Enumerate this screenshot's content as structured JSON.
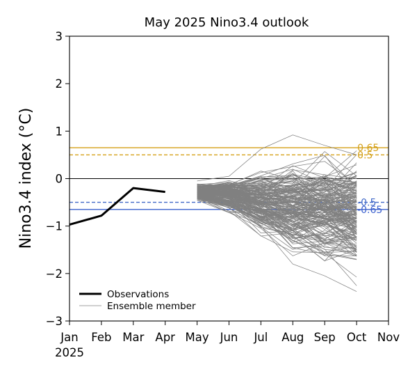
{
  "chart_data": {
    "type": "line",
    "title": "May 2025 Nino3.4 outlook",
    "ylabel": "Nino3.4 index (°C)",
    "xlabel": "",
    "year_label": "2025",
    "ylim": [
      -3,
      3
    ],
    "xlim": [
      0,
      10
    ],
    "yticks": [
      -3,
      -2,
      -1,
      0,
      1,
      2,
      3
    ],
    "ytick_labels": [
      "−3",
      "−2",
      "−1",
      "0",
      "1",
      "2",
      "3"
    ],
    "xtick_labels": [
      "Jan",
      "Feb",
      "Mar",
      "Apr",
      "May",
      "Jun",
      "Jul",
      "Aug",
      "Sep",
      "Oct",
      "Nov"
    ],
    "observations": {
      "name": "Observations",
      "x": [
        0,
        1,
        2,
        3
      ],
      "y": [
        -0.97,
        -0.78,
        -0.2,
        -0.28
      ],
      "color": "#000000"
    },
    "ensemble": {
      "name": "Ensemble member",
      "color": "#808080",
      "start_x": 4,
      "months_x": [
        4,
        5,
        6,
        7,
        8,
        9
      ],
      "center": [
        -0.28,
        -0.36,
        -0.5,
        -0.6,
        -0.65,
        -0.7
      ],
      "spread": [
        0.12,
        0.25,
        0.48,
        0.62,
        0.75,
        0.85
      ],
      "extremes": [
        [
          -0.05,
          0.05,
          0.62,
          0.92,
          0.7,
          0.5
        ],
        [
          -0.4,
          -0.55,
          -1.0,
          -1.8,
          -2.05,
          -2.38
        ]
      ],
      "count": 200
    },
    "thresholds": [
      {
        "value": 0.65,
        "label": "0.65",
        "color": "#d4a017",
        "style": "solid"
      },
      {
        "value": 0.5,
        "label": "0.5",
        "color": "#d4a017",
        "style": "dashed"
      },
      {
        "value": -0.5,
        "label": "-0.5",
        "color": "#4169c8",
        "style": "dashed"
      },
      {
        "value": -0.65,
        "label": "-0.65",
        "color": "#3a5fcd",
        "style": "solid"
      }
    ],
    "zero_line": {
      "value": 0,
      "color": "#000000"
    },
    "legend": {
      "position": "lower-left",
      "entries": [
        "Observations",
        "Ensemble member"
      ]
    }
  }
}
